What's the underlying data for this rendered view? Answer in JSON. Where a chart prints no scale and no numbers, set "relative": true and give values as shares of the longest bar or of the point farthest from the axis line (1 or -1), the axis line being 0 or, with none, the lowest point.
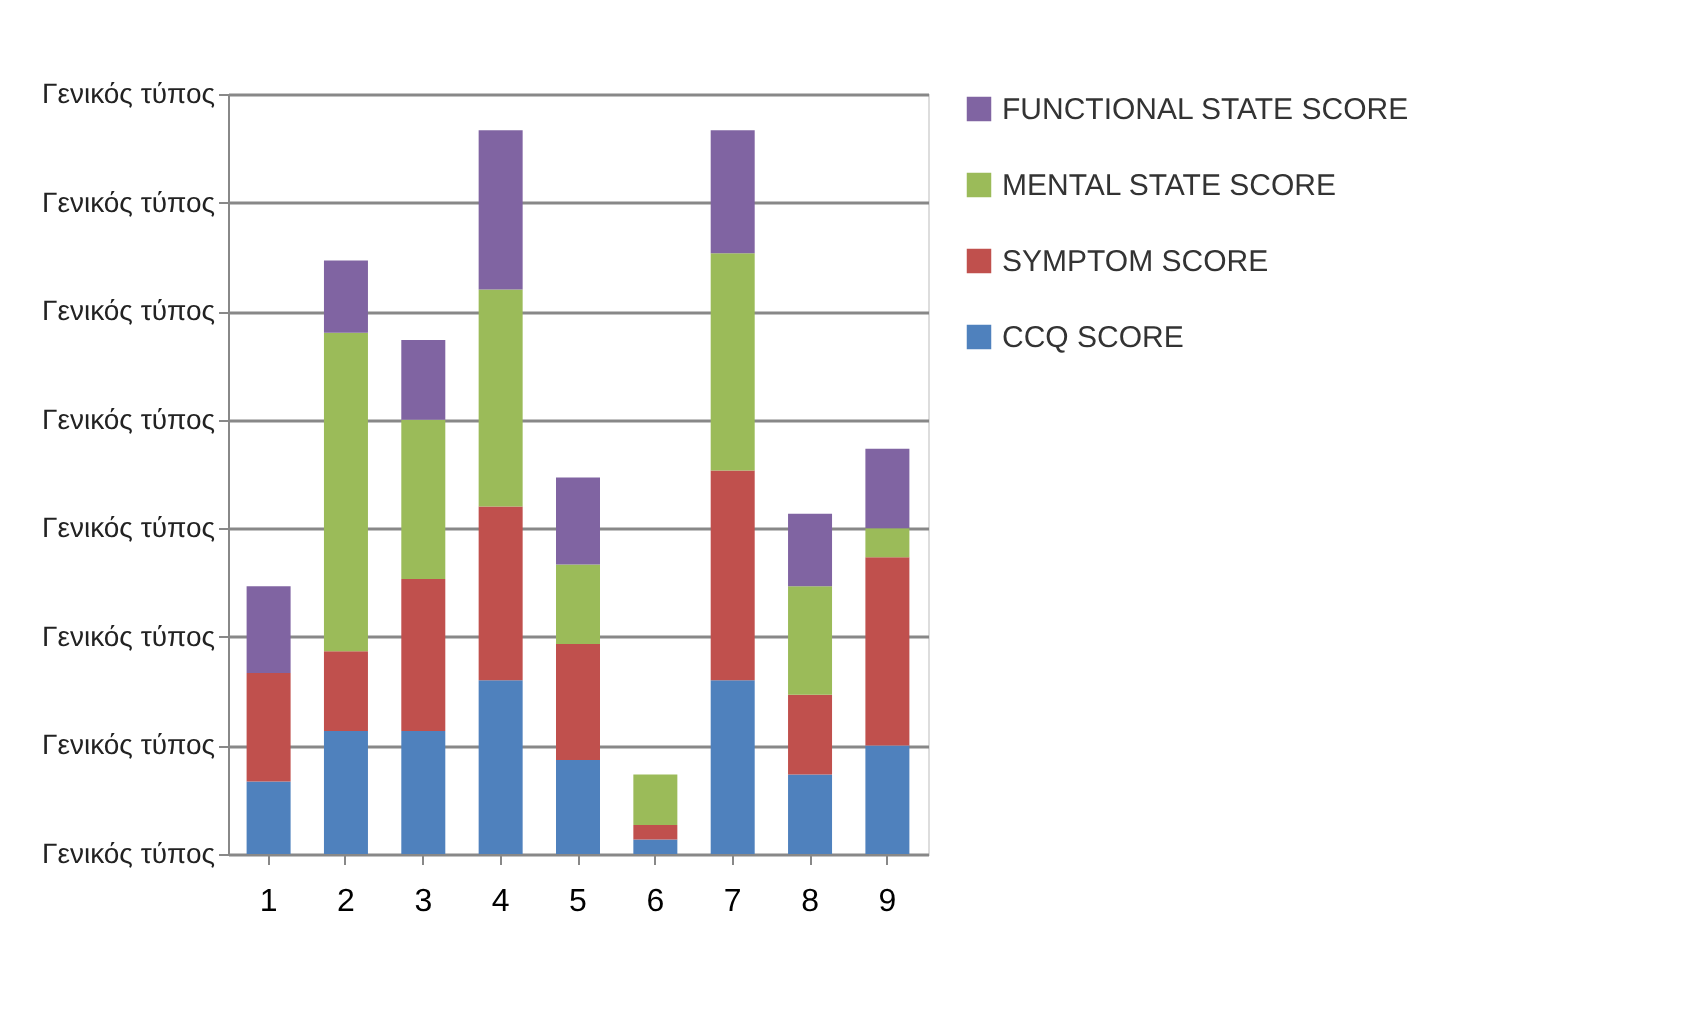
{
  "chart_data": {
    "type": "bar",
    "stacked": true,
    "relative": true,
    "categories": [
      "1",
      "2",
      "3",
      "4",
      "5",
      "6",
      "7",
      "8",
      "9"
    ],
    "series": [
      {
        "name": "CCQ SCORE",
        "color": "#4f81bd",
        "values": [
          0.1,
          0.17,
          0.17,
          0.24,
          0.13,
          0.02,
          0.24,
          0.11,
          0.15
        ]
      },
      {
        "name": "SYMPTOM SCORE",
        "color": "#c0504d",
        "values": [
          0.15,
          0.11,
          0.21,
          0.24,
          0.16,
          0.02,
          0.29,
          0.11,
          0.26
        ]
      },
      {
        "name": "MENTAL STATE SCORE",
        "color": "#9bbb59",
        "values": [
          0,
          0.44,
          0.22,
          0.3,
          0.11,
          0.07,
          0.3,
          0.15,
          0.04
        ]
      },
      {
        "name": "FUNCTIONAL STATE SCORE",
        "color": "#8064a2",
        "values": [
          0.12,
          0.1,
          0.11,
          0.22,
          0.12,
          0,
          0.17,
          0.1,
          0.11
        ]
      }
    ],
    "annotations": [
      "Γενικός τύπος",
      "Γενικός τύπος",
      "Γενικός τύπος",
      "Γενικός τύπος",
      "Γενικός τύπος",
      "Γενικός τύπος",
      "Γενικός τύπος",
      "Γενικός τύπος"
    ],
    "grid": "y",
    "legend": "right"
  }
}
